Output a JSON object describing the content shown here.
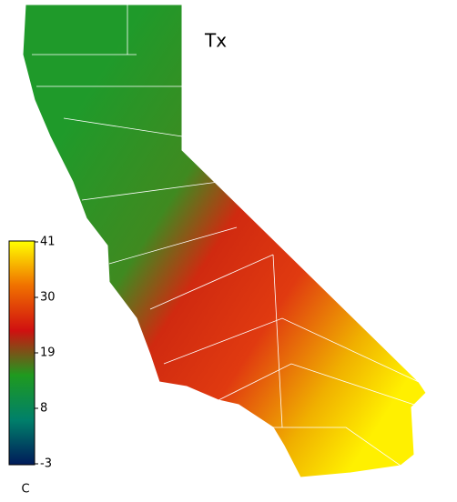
{
  "title": "Tx",
  "colorbar": {
    "lim": [
      -3,
      41
    ],
    "ticks": [
      41,
      30,
      19,
      8,
      -3
    ],
    "unit": "C",
    "colors": [
      "#001a5a",
      "#00806a",
      "#1f9a1f",
      "#d01010",
      "#f07000",
      "#ffff00"
    ]
  }
}
